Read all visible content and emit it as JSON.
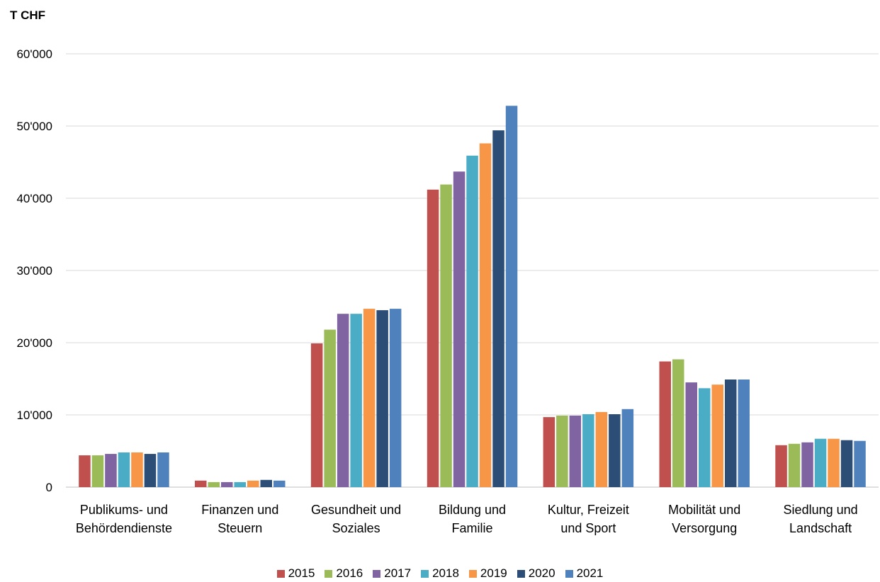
{
  "chart_data": {
    "type": "bar",
    "ylabel": "T CHF",
    "ylim": [
      0,
      60000
    ],
    "yticks": [
      0,
      10000,
      20000,
      30000,
      40000,
      50000,
      60000
    ],
    "ytick_labels": [
      "0",
      "10'000",
      "20'000",
      "30'000",
      "40'000",
      "50'000",
      "60'000"
    ],
    "grid": true,
    "legend_position": "bottom",
    "categories": [
      [
        "Publikums- und",
        "Behördendienste"
      ],
      [
        "Finanzen und",
        "Steuern"
      ],
      [
        "Gesundheit und",
        "Soziales"
      ],
      [
        "Bildung und",
        "Familie"
      ],
      [
        "Kultur, Freizeit",
        "und Sport"
      ],
      [
        "Mobilität und",
        "Versorgung"
      ],
      [
        "Siedlung und",
        "Landschaft"
      ]
    ],
    "series": [
      {
        "name": "2015",
        "color": "#C0504D",
        "values": [
          4400,
          900,
          19900,
          41200,
          9700,
          17400,
          5800
        ]
      },
      {
        "name": "2016",
        "color": "#9BBB59",
        "values": [
          4400,
          700,
          21800,
          41900,
          9900,
          17700,
          6000
        ]
      },
      {
        "name": "2017",
        "color": "#8064A2",
        "values": [
          4600,
          700,
          24000,
          43700,
          9900,
          14500,
          6200
        ]
      },
      {
        "name": "2018",
        "color": "#4BACC6",
        "values": [
          4800,
          700,
          24000,
          45900,
          10100,
          13700,
          6700
        ]
      },
      {
        "name": "2019",
        "color": "#F79646",
        "values": [
          4800,
          900,
          24700,
          47600,
          10400,
          14200,
          6700
        ]
      },
      {
        "name": "2020",
        "color": "#2C4D75",
        "values": [
          4600,
          1000,
          24500,
          49400,
          10100,
          14900,
          6500
        ]
      },
      {
        "name": "2021",
        "color": "#4F81BD",
        "values": [
          4800,
          900,
          24700,
          52800,
          10800,
          14900,
          6400
        ]
      }
    ]
  }
}
